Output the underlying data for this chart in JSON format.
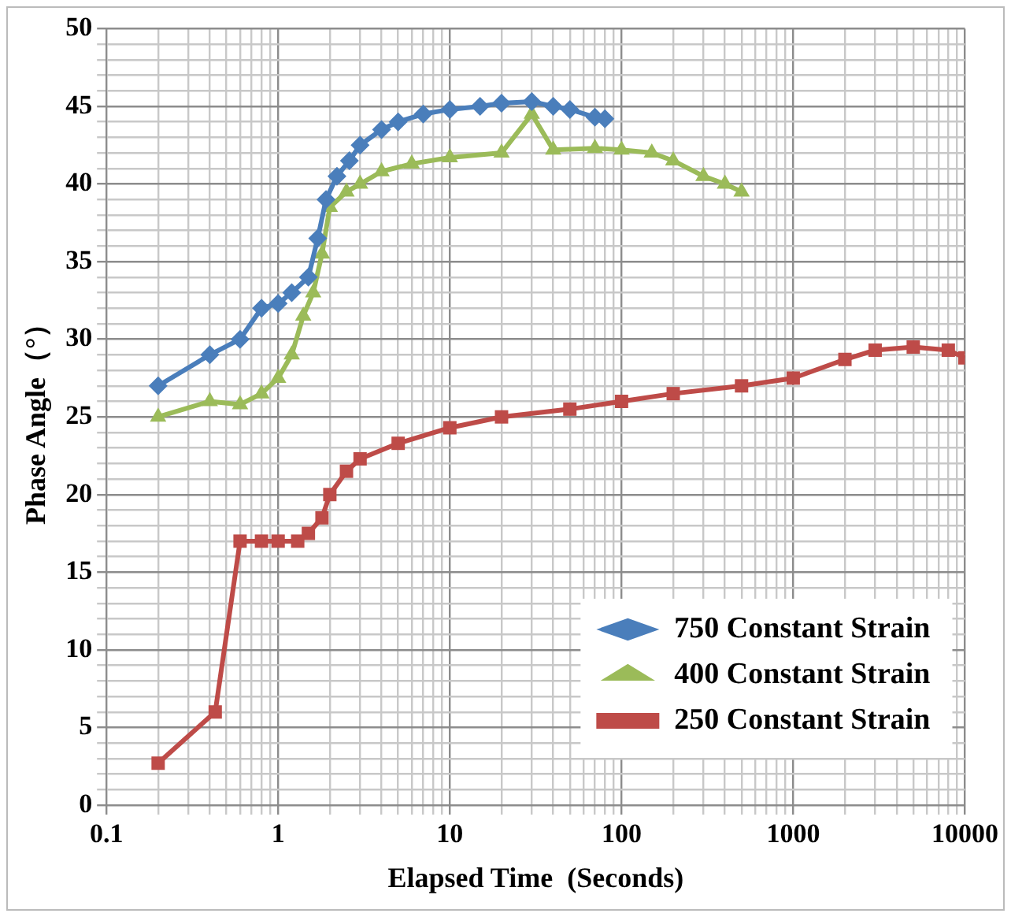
{
  "chart_data": {
    "type": "line",
    "xlabel": "Elapsed Time  (Seconds)",
    "ylabel": "Phase Angle（°）",
    "log": "x",
    "grid": true,
    "legend": "bottom right",
    "line_style": "solid",
    "xlim": [
      0.1,
      10000
    ],
    "ylim": [
      0,
      50
    ],
    "xticks": [
      0.1,
      {
        "value": 0.2,
        "label": null
      },
      {
        "value": 0.3,
        "label": null
      },
      {
        "value": 0.4,
        "label": null
      },
      {
        "value": 0.5,
        "label": null
      },
      {
        "value": 0.6,
        "label": null
      },
      {
        "value": 0.7,
        "label": null
      },
      {
        "value": 0.8,
        "label": null
      },
      {
        "value": 0.9,
        "label": null
      },
      1,
      {
        "value": 2,
        "label": null
      },
      {
        "value": 3,
        "label": null
      },
      {
        "value": 4,
        "label": null
      },
      {
        "value": 5,
        "label": null
      },
      {
        "value": 6,
        "label": null
      },
      {
        "value": 7,
        "label": null
      },
      {
        "value": 8,
        "label": null
      },
      {
        "value": 9,
        "label": null
      },
      10,
      {
        "value": 20,
        "label": null
      },
      {
        "value": 30,
        "label": null
      },
      {
        "value": 40,
        "label": null
      },
      {
        "value": 50,
        "label": null
      },
      {
        "value": 60,
        "label": null
      },
      {
        "value": 70,
        "label": null
      },
      {
        "value": 80,
        "label": null
      },
      {
        "value": 90,
        "label": null
      },
      100,
      {
        "value": 200,
        "label": null
      },
      {
        "value": 300,
        "label": null
      },
      {
        "value": 400,
        "label": null
      },
      {
        "value": 500,
        "label": null
      },
      {
        "value": 600,
        "label": null
      },
      {
        "value": 700,
        "label": null
      },
      {
        "value": 800,
        "label": null
      },
      {
        "value": 900,
        "label": null
      },
      1000,
      {
        "value": 2000,
        "label": null
      },
      {
        "value": 3000,
        "label": null
      },
      {
        "value": 4000,
        "label": null
      },
      {
        "value": 5000,
        "label": null
      },
      {
        "value": 6000,
        "label": null
      },
      {
        "value": 7000,
        "label": null
      },
      {
        "value": 8000,
        "label": null
      },
      {
        "value": 9000,
        "label": null
      },
      10000
    ],
    "yticks": [
      0,
      {
        "value": 1,
        "label": null
      },
      {
        "value": 2,
        "label": null
      },
      {
        "value": 3,
        "label": null
      },
      {
        "value": 4,
        "label": null
      },
      5,
      {
        "value": 6,
        "label": null
      },
      {
        "value": 7,
        "label": null
      },
      {
        "value": 8,
        "label": null
      },
      {
        "value": 9,
        "label": null
      },
      10,
      {
        "value": 11,
        "label": null
      },
      {
        "value": 12,
        "label": null
      },
      {
        "value": 13,
        "label": null
      },
      {
        "value": 14,
        "label": null
      },
      15,
      {
        "value": 16,
        "label": null
      },
      {
        "value": 17,
        "label": null
      },
      {
        "value": 18,
        "label": null
      },
      {
        "value": 19,
        "label": null
      },
      20,
      {
        "value": 21,
        "label": null
      },
      {
        "value": 22,
        "label": null
      },
      {
        "value": 23,
        "label": null
      },
      {
        "value": 24,
        "label": null
      },
      25,
      {
        "value": 26,
        "label": null
      },
      {
        "value": 27,
        "label": null
      },
      {
        "value": 28,
        "label": null
      },
      {
        "value": 29,
        "label": null
      },
      30,
      {
        "value": 31,
        "label": null
      },
      {
        "value": 32,
        "label": null
      },
      {
        "value": 33,
        "label": null
      },
      {
        "value": 34,
        "label": null
      },
      35,
      {
        "value": 36,
        "label": null
      },
      {
        "value": 37,
        "label": null
      },
      {
        "value": 38,
        "label": null
      },
      {
        "value": 39,
        "label": null
      },
      40,
      {
        "value": 41,
        "label": null
      },
      {
        "value": 42,
        "label": null
      },
      {
        "value": 43,
        "label": null
      },
      {
        "value": 44,
        "label": null
      },
      45,
      {
        "value": 46,
        "label": null
      },
      {
        "value": 47,
        "label": null
      },
      {
        "value": 48,
        "label": null
      },
      {
        "value": 49,
        "label": null
      },
      50
    ],
    "series": [
      {
        "name": "750 Constant Strain",
        "color": "#4a7ebb",
        "marker": "diamond",
        "x": [
          0.2,
          0.4,
          0.6,
          0.8,
          1.0,
          1.2,
          1.5,
          1.7,
          1.9,
          2.2,
          2.6,
          3,
          4,
          5,
          7,
          10,
          15,
          20,
          30,
          40,
          50,
          70,
          80
        ],
        "values": [
          27,
          29,
          30,
          32,
          32.3,
          33,
          34,
          36.5,
          39,
          40.5,
          41.5,
          42.5,
          43.5,
          44,
          44.5,
          44.8,
          45,
          45.2,
          45.3,
          45,
          44.8,
          44.3,
          44.2
        ]
      },
      {
        "name": "400 Constant Strain",
        "color": "#9bbb59",
        "marker": "triangle",
        "x": [
          0.2,
          0.4,
          0.6,
          0.8,
          1.0,
          1.2,
          1.4,
          1.6,
          1.8,
          2,
          2.5,
          3,
          4,
          6,
          10,
          20,
          30,
          40,
          70,
          100,
          150,
          200,
          300,
          400,
          500
        ],
        "values": [
          25,
          26,
          25.8,
          26.5,
          27.5,
          29,
          31.5,
          33,
          35.5,
          38.5,
          39.5,
          40,
          40.8,
          41.3,
          41.7,
          42,
          44.5,
          42.2,
          42.3,
          42.2,
          42,
          41.5,
          40.5,
          40,
          39.5
        ]
      },
      {
        "name": "250 Constant Strain",
        "color": "#be4b48",
        "marker": "square",
        "x": [
          0.2,
          0.43,
          0.6,
          0.8,
          1.0,
          1.3,
          1.5,
          1.8,
          2,
          2.5,
          3,
          5,
          10,
          20,
          50,
          100,
          200,
          500,
          1000,
          2000,
          3000,
          5000,
          8000,
          10000
        ],
        "values": [
          2.7,
          6,
          17,
          17,
          17,
          17,
          17.5,
          18.5,
          20,
          21.5,
          22.3,
          23.3,
          24.3,
          25,
          25.5,
          26,
          26.5,
          27,
          27.5,
          28.7,
          29.3,
          29.5,
          29.3,
          28.8
        ]
      }
    ]
  }
}
